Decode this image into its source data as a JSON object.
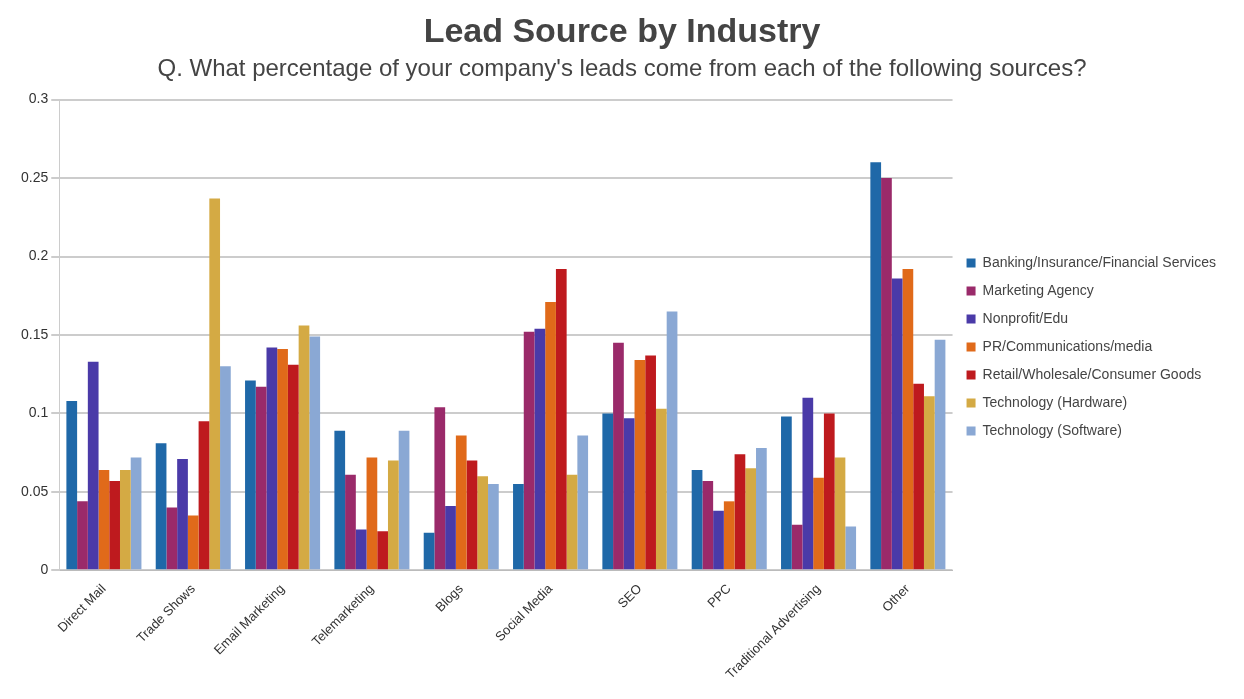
{
  "chart_data": {
    "type": "bar",
    "title": "Lead Source by Industry",
    "subtitle": "Q. What percentage of your company's leads come from each of the following sources?",
    "categories": [
      "Direct Mail",
      "Trade Shows",
      "Email Marketing",
      "Telemarketing",
      "Blogs",
      "Social Media",
      "SEO",
      "PPC",
      "Traditional Advertising",
      "Other"
    ],
    "series": [
      {
        "name": "Banking/Insurance/Financial Services",
        "color": "#1f68a8",
        "values": [
          0.108,
          0.081,
          0.121,
          0.089,
          0.024,
          0.055,
          0.1,
          0.064,
          0.098,
          0.26
        ]
      },
      {
        "name": "Marketing Agency",
        "color": "#9a2a6a",
        "values": [
          0.044,
          0.04,
          0.117,
          0.061,
          0.104,
          0.152,
          0.145,
          0.057,
          0.029,
          0.25
        ]
      },
      {
        "name": "Nonprofit/Edu",
        "color": "#4a3aa8",
        "values": [
          0.133,
          0.071,
          0.142,
          0.026,
          0.041,
          0.154,
          0.097,
          0.038,
          0.11,
          0.186
        ]
      },
      {
        "name": "PR/Communications/media",
        "color": "#e06a1a",
        "values": [
          0.064,
          0.035,
          0.141,
          0.072,
          0.086,
          0.171,
          0.134,
          0.044,
          0.059,
          0.192
        ]
      },
      {
        "name": "Retail/Wholesale/Consumer Goods",
        "color": "#be1a1e",
        "values": [
          0.057,
          0.095,
          0.131,
          0.025,
          0.07,
          0.192,
          0.137,
          0.074,
          0.1,
          0.119
        ]
      },
      {
        "name": "Technology (Hardware)",
        "color": "#d4aa44",
        "values": [
          0.064,
          0.237,
          0.156,
          0.07,
          0.06,
          0.061,
          0.103,
          0.065,
          0.072,
          0.111
        ]
      },
      {
        "name": "Technology (Software)",
        "color": "#8aa8d4",
        "values": [
          0.072,
          0.13,
          0.149,
          0.089,
          0.055,
          0.086,
          0.165,
          0.078,
          0.028,
          0.147
        ]
      }
    ],
    "ylim": [
      0,
      0.3
    ],
    "yticks": [
      0,
      0.05,
      0.1,
      0.15,
      0.2,
      0.25,
      0.3
    ],
    "grid": "y",
    "legend": "right"
  }
}
